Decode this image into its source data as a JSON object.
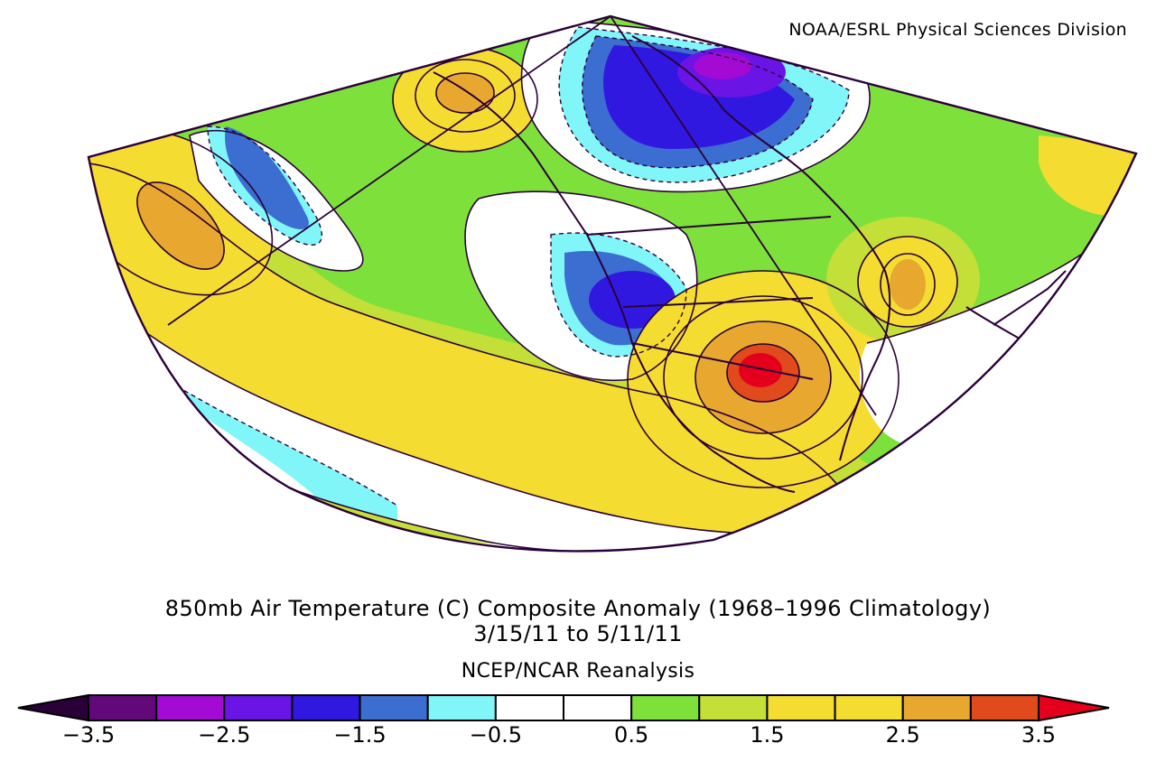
{
  "credit": "NOAA/ESRL Physical Sciences Division",
  "title": {
    "line1": "850mb Air Temperature (C) Composite Anomaly (1968–1996 Climatology)",
    "line2": "3/15/11  to 5/11/11",
    "source": "NCEP/NCAR Reanalysis"
  },
  "map": {
    "projection": "Lambert conic, North Pacific / North America sector",
    "variable": "850mb air temperature anomaly",
    "units": "C",
    "anomaly_centers": [
      {
        "name": "south-central-us-warm-max",
        "value": 3.5
      },
      {
        "name": "gulf-of-alaska-warm-center",
        "value": 2.5
      },
      {
        "name": "western-pacific-warm-center",
        "value": 2.5
      },
      {
        "name": "eastern-canada-warm-center",
        "value": 2.5
      },
      {
        "name": "northern-canada-cold-center",
        "value": -3.0
      },
      {
        "name": "northern-plains-cold-center",
        "value": -2.0
      },
      {
        "name": "north-pacific-cold-trough",
        "value": -1.5
      }
    ]
  },
  "colorbar": {
    "colors": [
      "#2a0038",
      "#62087a",
      "#a30ad4",
      "#6a14e6",
      "#3018e0",
      "#3c6ed2",
      "#80f6f8",
      "#ffffff",
      "#ffffff",
      "#7ee03a",
      "#c4e038",
      "#f4dc30",
      "#f4dc30",
      "#e8a830",
      "#e04a1c",
      "#e4001c"
    ],
    "ticks": [
      "−3.5",
      "−2.5",
      "−1.5",
      "−0.5",
      "0.5",
      "1.5",
      "2.5",
      "3.5"
    ]
  }
}
